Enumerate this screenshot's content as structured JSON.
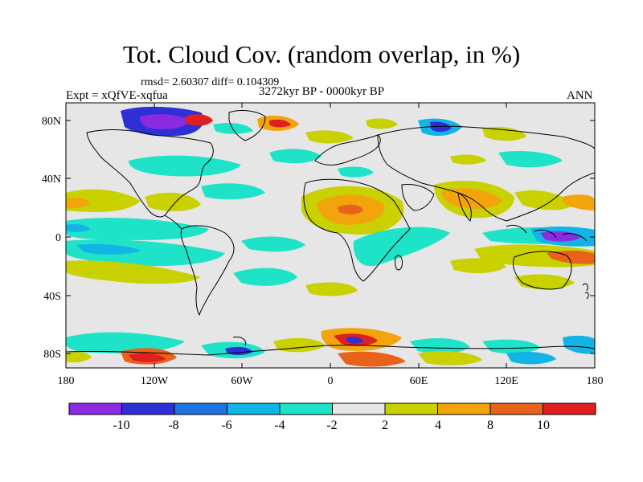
{
  "title": "Tot. Cloud Cov. (random overlap, in %)",
  "stats": "rmsd= 2.60307 diff= 0.104309",
  "experiment": "Expt = xQfVE-xqfua",
  "period": "3272kyr BP - 0000kyr BP",
  "season": "ANN",
  "lat_ticks": [
    "80N",
    "40N",
    "0",
    "40S",
    "80S"
  ],
  "lon_ticks": [
    "180",
    "120W",
    "60W",
    "0",
    "60E",
    "120E",
    "180"
  ],
  "colorbar": {
    "labels": [
      "-10",
      "-8",
      "-6",
      "-4",
      "-2",
      "2",
      "4",
      "8",
      "10"
    ],
    "colors": [
      "#8a2be2",
      "#2f2fd6",
      "#1f74e0",
      "#12b4e6",
      "#1ee3c8",
      "#e6e6e6",
      "#c9d100",
      "#f2a40d",
      "#e8621a",
      "#e02020"
    ]
  }
}
